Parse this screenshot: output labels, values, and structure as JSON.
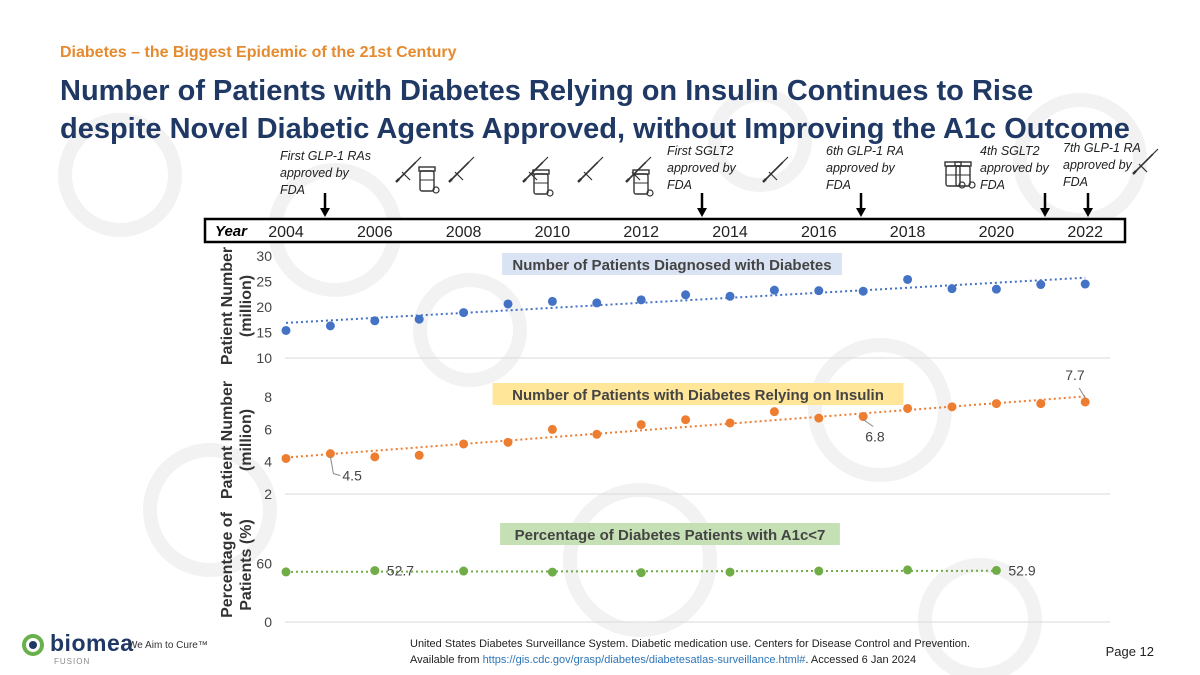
{
  "kicker": "Diabetes – the Biggest Epidemic of the 21st Century",
  "title": "Number of Patients with Diabetes Relying on Insulin Continues to Rise despite Novel Diabetic Agents Approved, without Improving the A1c Outcome",
  "colors": {
    "blue": "#4472c4",
    "orange": "#ed7d31",
    "green": "#70ad47",
    "navy": "#1f3864",
    "kicker": "#e58a2e"
  },
  "timeline": {
    "year_label": "Year",
    "years": [
      "2004",
      "2006",
      "2008",
      "2010",
      "2012",
      "2014",
      "2016",
      "2018",
      "2020",
      "2022"
    ],
    "events": [
      {
        "text": [
          "First GLP-1 RAs",
          "approved by",
          "FDA"
        ],
        "year": 2005
      },
      {
        "text": [
          "First SGLT2",
          "approved by",
          "FDA"
        ],
        "year": 2013
      },
      {
        "text": [
          "6th GLP-1 RA",
          "approved by",
          "FDA"
        ],
        "year": 2017
      },
      {
        "text": [
          "4th SGLT2",
          "approved by",
          "FDA"
        ],
        "year": 2021
      },
      {
        "text": [
          "7th GLP-1 RA",
          "approved by",
          "FDA"
        ],
        "year": 2022
      }
    ],
    "icons": [
      {
        "name": "syringe-icon",
        "year": 2007.6
      },
      {
        "name": "pill-bottle-icon",
        "year": 2007.1
      },
      {
        "name": "syringe-icon",
        "year": 2008.1
      },
      {
        "name": "syringe-icon",
        "year": 2009.9
      },
      {
        "name": "pill-bottle-icon",
        "year": 2009.9
      },
      {
        "name": "syringe-icon",
        "year": 2011.1
      },
      {
        "name": "syringe-icon",
        "year": 2012.1
      },
      {
        "name": "pill-bottle-icon",
        "year": 2012.1
      },
      {
        "name": "syringe-icon",
        "year": 2015.1
      },
      {
        "name": "pill-bottle-icon",
        "year": 2019.7
      },
      {
        "name": "pill-bottle-icon",
        "year": 2020.1
      },
      {
        "name": "syringe-icon",
        "year": 2023.1
      }
    ]
  },
  "chart_data": [
    {
      "type": "scatter",
      "title": "Number of Patients Diagnosed with Diabetes",
      "ylabel": "Patient Number (million)",
      "ylim": [
        10,
        30
      ],
      "yticks": [
        10,
        15,
        20,
        25,
        30
      ],
      "trendline": "linear dotted",
      "x": [
        2004,
        2005,
        2006,
        2007,
        2008,
        2009,
        2010,
        2011,
        2012,
        2013,
        2014,
        2015,
        2016,
        2017,
        2018,
        2019,
        2020,
        2021,
        2022
      ],
      "values": [
        15.4,
        16.3,
        17.3,
        17.6,
        18.9,
        20.6,
        21.1,
        20.8,
        21.4,
        22.4,
        22.1,
        23.3,
        23.2,
        23.1,
        25.4,
        23.6,
        23.5,
        24.4,
        24.5
      ]
    },
    {
      "type": "scatter",
      "title": "Number of Patients with Diabetes Relying on Insulin",
      "ylabel": "Patient Number (million)",
      "ylim": [
        2,
        9
      ],
      "yticks": [
        2,
        4,
        6,
        8
      ],
      "trendline": "linear dotted",
      "x": [
        2004,
        2005,
        2006,
        2007,
        2008,
        2009,
        2010,
        2011,
        2012,
        2013,
        2014,
        2015,
        2016,
        2017,
        2018,
        2019,
        2020,
        2021,
        2022
      ],
      "values": [
        4.2,
        4.5,
        4.3,
        4.4,
        5.1,
        5.2,
        6.0,
        5.7,
        6.3,
        6.6,
        6.4,
        7.1,
        6.7,
        6.8,
        7.3,
        7.4,
        7.6,
        7.6,
        7.7
      ],
      "annotations": [
        {
          "label": "4.5",
          "x": 2005,
          "y": 4.5
        },
        {
          "label": "6.8",
          "x": 2017,
          "y": 6.8
        },
        {
          "label": "7.7",
          "x": 2022,
          "y": 7.7
        }
      ]
    },
    {
      "type": "scatter",
      "title": "Percentage of Diabetes Patients with A1c<7",
      "ylabel": "Percentage of Patients (%)",
      "ylim": [
        0,
        80
      ],
      "yticks": [
        0,
        60
      ],
      "trendline": "linear dotted",
      "x": [
        2004,
        2006,
        2008,
        2010,
        2012,
        2014,
        2016,
        2018,
        2020
      ],
      "values": [
        51.4,
        52.7,
        52.3,
        51.2,
        50.6,
        51.2,
        52.3,
        53.4,
        52.9
      ],
      "annotations": [
        {
          "label": "52.7",
          "x": 2006,
          "y": 52.7
        },
        {
          "label": "52.9",
          "x": 2020,
          "y": 52.9
        }
      ]
    }
  ],
  "footer": {
    "line1": "United States Diabetes Surveillance System. Diabetic medication use. Centers for Disease Control and Prevention.",
    "line2_prefix": "Available from ",
    "line2_url": "https://gis.cdc.gov/grasp/diabetes/diabetesatlas-surveillance.html#",
    "line2_suffix": ". Accessed 6 Jan 2024"
  },
  "page_label": "Page 12",
  "logo": {
    "name": "biomea",
    "sub": "FUSION",
    "tagline": "We Aim to Cure™"
  }
}
